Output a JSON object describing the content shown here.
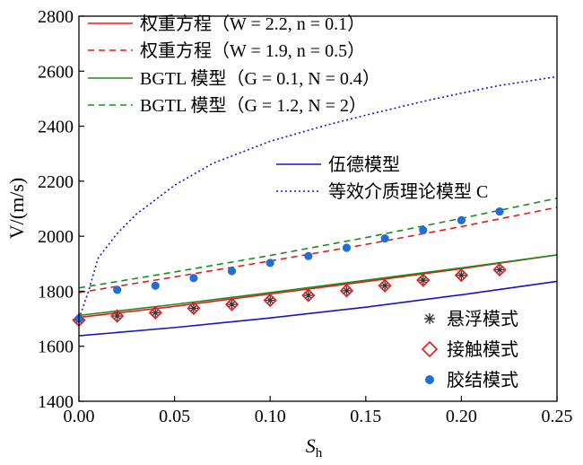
{
  "chart_data": {
    "type": "line",
    "xlabel": "S_h",
    "xlabel_main": "S",
    "xlabel_sub": "h",
    "ylabel": "V/(m/s)",
    "xlim": [
      0,
      0.25
    ],
    "ylim": [
      1400,
      2800
    ],
    "xticks": [
      0,
      0.05,
      0.1,
      0.15,
      0.2,
      0.25
    ],
    "xtick_labels": [
      "0.00",
      "0.05",
      "0.10",
      "0.15",
      "0.20",
      "0.25"
    ],
    "yticks": [
      1400,
      1600,
      1800,
      2000,
      2200,
      2400,
      2600,
      2800
    ],
    "ytick_labels": [
      "1400",
      "1600",
      "1800",
      "2000",
      "2200",
      "2400",
      "2600",
      "2800"
    ],
    "grid": false,
    "legend_top_left": {
      "placement": "top-left",
      "entries": [
        "权重方程（W = 2.2, n = 0.1）",
        "权重方程（W = 1.9, n = 0.5）",
        "BGTL 模型（G = 0.1, N = 0.4）",
        "BGTL 模型（G = 1.2, N = 2）"
      ]
    },
    "legend_middle": {
      "placement": "center",
      "entries": [
        "伍德模型",
        "等效介质理论模型 C"
      ]
    },
    "legend_bottom_right": {
      "placement": "bottom-right",
      "entries": [
        "悬浮模式",
        "接触模式",
        "胶结模式"
      ]
    },
    "series": [
      {
        "name": "权重方程（W = 2.2, n = 0.1）",
        "kind": "line",
        "style": "solid",
        "color": "#e8191c",
        "x": [
          0,
          0.05,
          0.1,
          0.15,
          0.2,
          0.25
        ],
        "y": [
          1705,
          1745,
          1790,
          1835,
          1882,
          1932
        ]
      },
      {
        "name": "权重方程（W = 1.9, n = 0.5）",
        "kind": "line",
        "style": "dashed",
        "color": "#e8191c",
        "x": [
          0,
          0.05,
          0.1,
          0.15,
          0.2,
          0.25
        ],
        "y": [
          1795,
          1852,
          1910,
          1970,
          2035,
          2105
        ]
      },
      {
        "name": "BGTL 模型（G = 0.1, N = 0.4）",
        "kind": "line",
        "style": "solid",
        "color": "#1a8c1a",
        "x": [
          0,
          0.05,
          0.1,
          0.15,
          0.2,
          0.25
        ],
        "y": [
          1712,
          1752,
          1795,
          1840,
          1885,
          1932
        ]
      },
      {
        "name": "BGTL 模型（G = 1.2, N = 2）",
        "kind": "line",
        "style": "dashed",
        "color": "#1a8c1a",
        "x": [
          0,
          0.05,
          0.1,
          0.15,
          0.2,
          0.25
        ],
        "y": [
          1812,
          1870,
          1930,
          1995,
          2065,
          2138
        ]
      },
      {
        "name": "伍德模型",
        "kind": "line",
        "style": "solid",
        "color": "#1414c8",
        "x": [
          0,
          0.05,
          0.1,
          0.15,
          0.2,
          0.25
        ],
        "y": [
          1638,
          1668,
          1703,
          1742,
          1787,
          1836
        ]
      },
      {
        "name": "等效介质理论模型 C",
        "kind": "line",
        "style": "dotted",
        "color": "#1414c8",
        "x": [
          0,
          0.005,
          0.01,
          0.02,
          0.03,
          0.05,
          0.07,
          0.1,
          0.13,
          0.15,
          0.18,
          0.2,
          0.22,
          0.25
        ],
        "y": [
          1700,
          1800,
          1920,
          2010,
          2080,
          2185,
          2265,
          2345,
          2405,
          2440,
          2490,
          2520,
          2548,
          2580
        ]
      },
      {
        "name": "悬浮模式",
        "kind": "marker",
        "marker": "asterisk",
        "color": "#333333",
        "x": [
          0,
          0.02,
          0.04,
          0.06,
          0.08,
          0.1,
          0.12,
          0.14,
          0.16,
          0.18,
          0.2,
          0.22
        ],
        "y": [
          1695,
          1710,
          1722,
          1738,
          1752,
          1767,
          1785,
          1802,
          1820,
          1840,
          1858,
          1878
        ]
      },
      {
        "name": "接触模式",
        "kind": "marker",
        "marker": "diamond",
        "color": "#e8191c",
        "x": [
          0,
          0.02,
          0.04,
          0.06,
          0.08,
          0.1,
          0.12,
          0.14,
          0.16,
          0.18,
          0.2,
          0.22
        ],
        "y": [
          1695,
          1710,
          1722,
          1738,
          1752,
          1767,
          1785,
          1802,
          1820,
          1840,
          1858,
          1878
        ]
      },
      {
        "name": "胶结模式",
        "kind": "marker",
        "marker": "circle",
        "color": "#1f6fd6",
        "x": [
          0,
          0.02,
          0.04,
          0.06,
          0.08,
          0.1,
          0.12,
          0.14,
          0.16,
          0.18,
          0.2,
          0.22
        ],
        "y": [
          1700,
          1805,
          1820,
          1848,
          1873,
          1903,
          1928,
          1958,
          1992,
          2022,
          2058,
          2090
        ]
      }
    ]
  }
}
